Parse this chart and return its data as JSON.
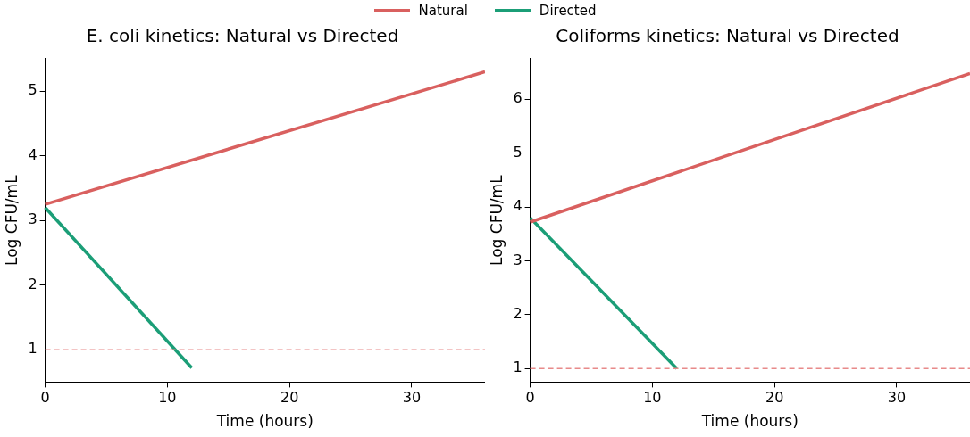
{
  "chart_data": [
    {
      "type": "line",
      "title": "E. coli kinetics: Natural vs Directed",
      "xlabel": "Time (hours)",
      "ylabel": "Log CFU/mL",
      "xlim": [
        0,
        36
      ],
      "xticks": [
        0,
        10,
        20,
        30
      ],
      "ylim": [
        0.5,
        5.5
      ],
      "yticks": [
        1,
        2,
        3,
        4,
        5
      ],
      "legend": "top",
      "grid": false,
      "series": [
        {
          "name": "Natural",
          "color": "#d9605f",
          "x": [
            0,
            36
          ],
          "values": [
            3.25,
            5.3
          ]
        },
        {
          "name": "Directed",
          "color": "#1b9e77",
          "x": [
            0,
            12
          ],
          "values": [
            3.2,
            0.72
          ]
        }
      ],
      "ref_lines": [
        {
          "axis": "y",
          "value": 1,
          "color": "#e88a8a",
          "line_style": "dashed"
        }
      ]
    },
    {
      "type": "line",
      "title": "Coliforms kinetics: Natural vs Directed",
      "xlabel": "Time (hours)",
      "ylabel": "Log CFU/mL",
      "xlim": [
        0,
        36
      ],
      "xticks": [
        0,
        10,
        20,
        30
      ],
      "ylim": [
        0.75,
        6.75
      ],
      "yticks": [
        1,
        2,
        3,
        4,
        5,
        6
      ],
      "grid": false,
      "series": [
        {
          "color": "#d9605f",
          "x": [
            0,
            36
          ],
          "values": [
            3.72,
            6.48
          ]
        },
        {
          "color": "#1b9e77",
          "x": [
            0,
            12
          ],
          "values": [
            3.8,
            1.0
          ]
        }
      ],
      "ref_lines": [
        {
          "axis": "y",
          "value": 1,
          "color": "#e88a8a",
          "line_style": "dashed"
        }
      ]
    }
  ]
}
